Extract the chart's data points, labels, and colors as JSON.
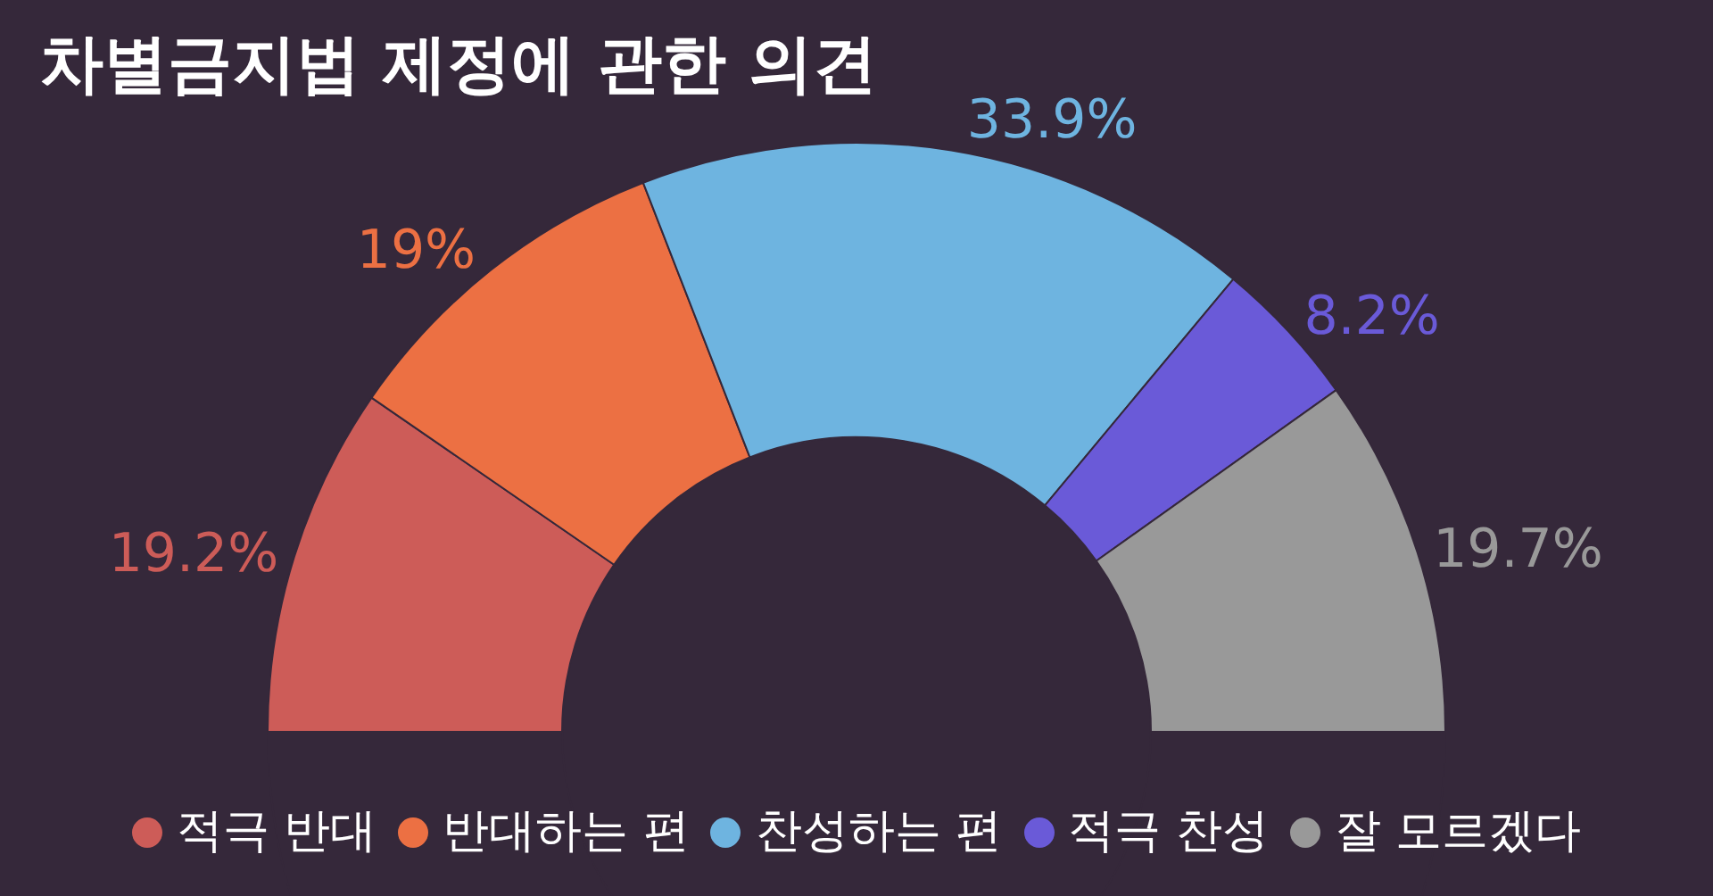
{
  "chart_data": {
    "type": "donut",
    "title": "차별금지법 제정에 관한 의견",
    "categories": [
      "적극 반대",
      "반대하는 편",
      "찬성하는 편",
      "적극 찬성",
      "잘 모르겠다"
    ],
    "values": [
      19.2,
      19,
      33.9,
      8.2,
      19.7
    ],
    "colors": [
      "#cd5c58",
      "#ec7043",
      "#6eb4e0",
      "#6a5ad8",
      "#999999"
    ],
    "value_labels": [
      "19.2%",
      "19%",
      "33.9%",
      "8.2%",
      "19.7%"
    ],
    "legend": "bottom"
  }
}
